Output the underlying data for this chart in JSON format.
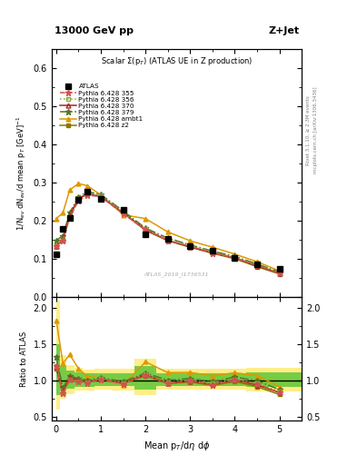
{
  "title_top": "13000 GeV pp",
  "title_right": "Z+Jet",
  "panel_title": "Scalar Σ(p_T) (ATLAS UE in Z production)",
  "watermark": "ATLAS_2019_I1736531",
  "right_label": "Rivet 3.1.10, ≥ 2.3M events",
  "right_label2": "mcplots.cern.ch [arXiv:1306.3436]",
  "xlabel": "Mean p_T/dη dφ",
  "ylabel": "1/N_ev dN_ev/d mean p_T [GeV]^{-1}",
  "ylabel_ratio": "Ratio to ATLAS",
  "xdata": [
    0.0,
    0.15,
    0.3,
    0.5,
    0.7,
    1.0,
    1.5,
    2.0,
    2.5,
    3.0,
    3.5,
    4.0,
    4.5,
    5.0
  ],
  "atlas_y": [
    0.112,
    0.178,
    0.206,
    0.255,
    0.275,
    0.257,
    0.228,
    0.163,
    0.153,
    0.132,
    0.122,
    0.101,
    0.086,
    0.074
  ],
  "py355_y": [
    0.134,
    0.147,
    0.208,
    0.252,
    0.267,
    0.262,
    0.218,
    0.175,
    0.148,
    0.132,
    0.115,
    0.102,
    0.082,
    0.062
  ],
  "py356_y": [
    0.134,
    0.148,
    0.21,
    0.254,
    0.27,
    0.265,
    0.22,
    0.177,
    0.149,
    0.133,
    0.117,
    0.103,
    0.083,
    0.063
  ],
  "py370_y": [
    0.133,
    0.15,
    0.215,
    0.257,
    0.271,
    0.263,
    0.22,
    0.177,
    0.148,
    0.131,
    0.116,
    0.102,
    0.081,
    0.062
  ],
  "py379_y": [
    0.148,
    0.16,
    0.22,
    0.262,
    0.276,
    0.268,
    0.225,
    0.18,
    0.154,
    0.136,
    0.12,
    0.106,
    0.086,
    0.065
  ],
  "pyambt1_y": [
    0.205,
    0.22,
    0.28,
    0.297,
    0.291,
    0.267,
    0.215,
    0.205,
    0.17,
    0.147,
    0.13,
    0.112,
    0.092,
    0.068
  ],
  "pyz2_y": [
    0.13,
    0.15,
    0.213,
    0.255,
    0.271,
    0.262,
    0.22,
    0.174,
    0.147,
    0.13,
    0.114,
    0.1,
    0.079,
    0.06
  ],
  "ratio_py355_y": [
    1.196,
    0.826,
    1.01,
    0.988,
    0.971,
    1.02,
    0.956,
    1.074,
    0.967,
    1.0,
    0.942,
    1.01,
    0.953,
    0.838
  ],
  "ratio_py356_y": [
    1.196,
    0.831,
    1.019,
    0.996,
    0.982,
    1.031,
    0.965,
    1.086,
    0.974,
    1.008,
    0.959,
    1.02,
    0.965,
    0.851
  ],
  "ratio_py370_y": [
    1.187,
    0.843,
    1.044,
    1.008,
    0.985,
    1.023,
    0.965,
    1.086,
    0.967,
    0.992,
    0.951,
    1.01,
    0.942,
    0.838
  ],
  "ratio_py379_y": [
    1.321,
    0.899,
    1.068,
    1.027,
    1.004,
    1.043,
    0.987,
    1.104,
    1.007,
    1.03,
    0.984,
    1.05,
    1.0,
    0.878
  ],
  "ratio_pyambt1_y": [
    1.83,
    1.236,
    1.359,
    1.165,
    1.058,
    1.039,
    0.943,
    1.258,
    1.111,
    1.114,
    1.066,
    1.109,
    1.07,
    0.919
  ],
  "ratio_pyz2_y": [
    1.161,
    0.843,
    1.034,
    1.0,
    0.985,
    1.02,
    0.965,
    1.067,
    0.961,
    0.985,
    0.934,
    0.99,
    0.919,
    0.811
  ],
  "band_x_edges": [
    0.0,
    0.075,
    0.225,
    0.4,
    0.6,
    0.85,
    1.25,
    1.75,
    2.25,
    2.75,
    3.25,
    3.75,
    4.25,
    4.75,
    5.5
  ],
  "band_yellow_lo": [
    0.6,
    0.75,
    0.82,
    0.87,
    0.87,
    0.88,
    0.87,
    0.8,
    0.88,
    0.88,
    0.88,
    0.88,
    0.85,
    0.85
  ],
  "band_yellow_hi": [
    2.1,
    1.35,
    1.22,
    1.18,
    1.15,
    1.16,
    1.16,
    1.3,
    1.16,
    1.16,
    1.16,
    1.16,
    1.18,
    1.18
  ],
  "band_green_lo": [
    0.8,
    0.87,
    0.89,
    0.92,
    0.92,
    0.93,
    0.93,
    0.88,
    0.93,
    0.93,
    0.93,
    0.93,
    0.91,
    0.91
  ],
  "band_green_hi": [
    1.5,
    1.2,
    1.14,
    1.11,
    1.1,
    1.1,
    1.1,
    1.2,
    1.1,
    1.1,
    1.1,
    1.1,
    1.12,
    1.12
  ],
  "color_355": "#d45050",
  "color_356": "#88aa44",
  "color_370": "#aa2222",
  "color_379": "#557722",
  "color_ambt1": "#dd9900",
  "color_z2": "#887700",
  "color_yellow_band": "#ffee88",
  "color_green_band": "#77cc44",
  "ylim_main": [
    0.0,
    0.65
  ],
  "ylim_ratio": [
    0.45,
    2.15
  ],
  "xlim": [
    -0.1,
    5.5
  ]
}
